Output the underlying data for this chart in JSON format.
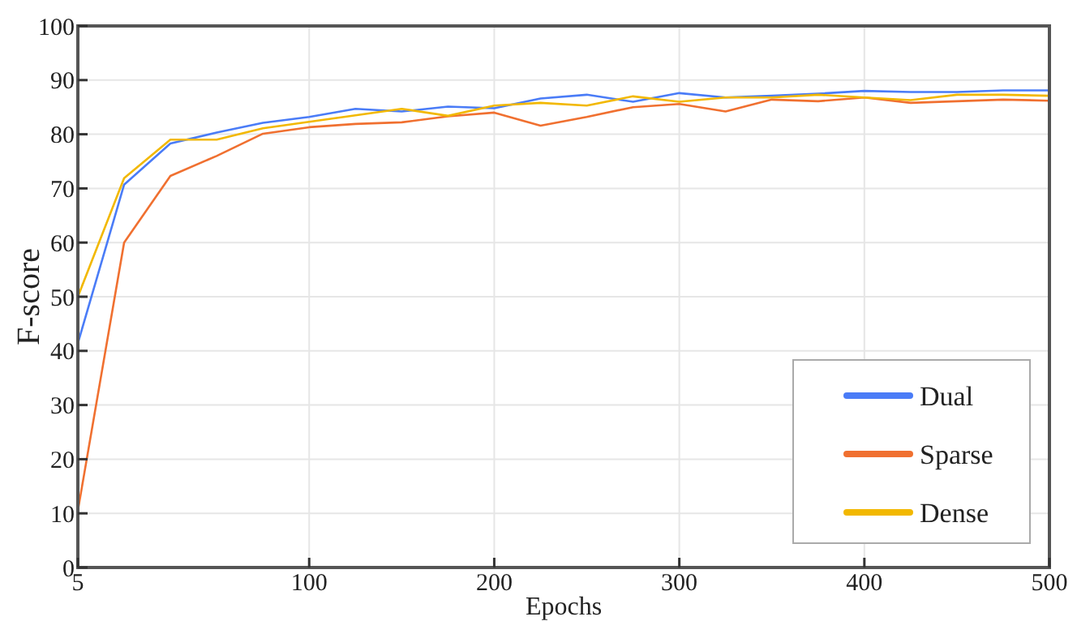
{
  "chart_data": {
    "type": "line",
    "xlabel": "Epochs",
    "ylabel": "F-score",
    "categories": [
      "5",
      null,
      null,
      null,
      null,
      "100",
      null,
      null,
      null,
      "200",
      null,
      null,
      null,
      "300",
      null,
      null,
      null,
      "400",
      null,
      null,
      null,
      "500"
    ],
    "ylim": [
      0,
      100
    ],
    "yticks": [
      0,
      10,
      20,
      30,
      40,
      50,
      60,
      70,
      80,
      90,
      100
    ],
    "grid": true,
    "legend": "bottom right",
    "marker": "none",
    "line_style": "solid",
    "series": [
      {
        "name": "Dual",
        "color": "#4a7cf7",
        "values": [
          41.4,
          70.7,
          78.3,
          80.3,
          82.1,
          83.2,
          84.7,
          84.2,
          85.1,
          84.8,
          86.6,
          87.3,
          86,
          87.6,
          86.8,
          87.1,
          87.5,
          88,
          87.8,
          87.8,
          88.1,
          88.1
        ]
      },
      {
        "name": "Sparse",
        "color": "#f07030",
        "values": [
          10.5,
          60,
          72.3,
          76,
          80.1,
          81.3,
          81.9,
          82.2,
          83.3,
          84,
          81.6,
          83.2,
          85,
          85.6,
          84.2,
          86.4,
          86.1,
          86.8,
          85.8,
          86.1,
          86.4,
          86.2
        ]
      },
      {
        "name": "Dense",
        "color": "#f2b800",
        "values": [
          50,
          71.9,
          79,
          79,
          81.1,
          82.3,
          83.5,
          84.7,
          83.4,
          85.3,
          85.8,
          85.3,
          87,
          86,
          86.8,
          86.8,
          87.3,
          86.8,
          86.3,
          87.3,
          87.3,
          87.1
        ]
      }
    ]
  }
}
